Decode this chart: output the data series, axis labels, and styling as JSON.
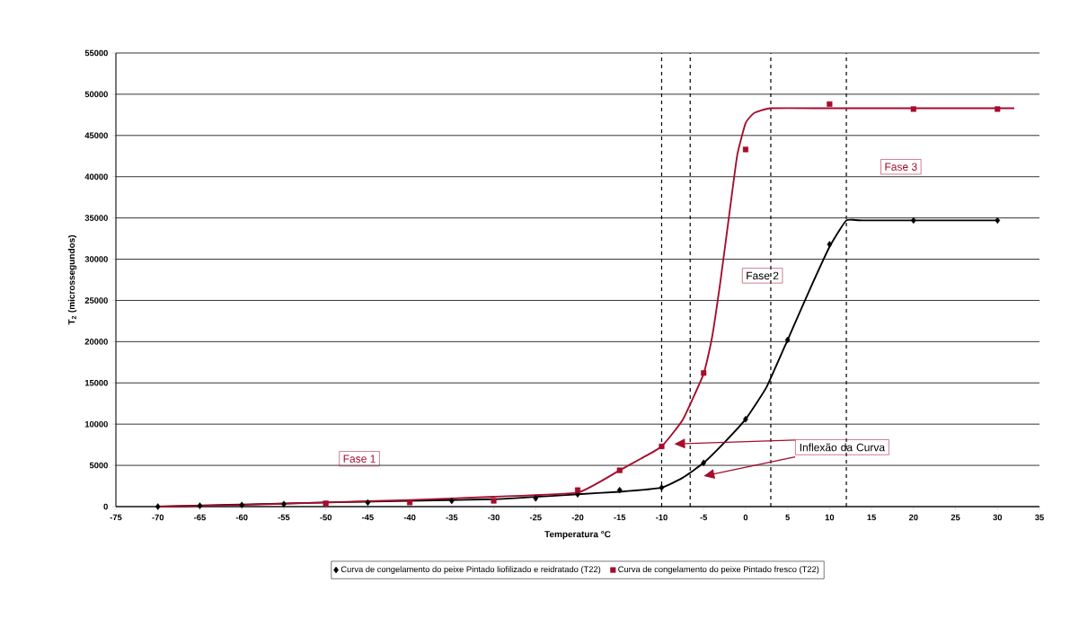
{
  "chart_data": {
    "type": "line",
    "xlabel": "Temperatura °C",
    "ylabel": "T$_{2}$ (microssegundos)",
    "xlim": [
      -75,
      35
    ],
    "xticks": [
      -75,
      -70,
      -65,
      -60,
      -55,
      -50,
      -45,
      -40,
      -35,
      -30,
      -25,
      -20,
      -15,
      -10,
      -5,
      0,
      5,
      10,
      15,
      20,
      25,
      30,
      35
    ],
    "ylim": [
      0,
      55000
    ],
    "yticks": [
      0,
      5000,
      10000,
      15000,
      20000,
      25000,
      30000,
      35000,
      40000,
      45000,
      50000,
      55000
    ],
    "grid": "y",
    "legend": "bottom",
    "series": [
      {
        "name": "Curva de congelamento do peixe Pintado liofilizado e reidratado (T22)",
        "type": "scatter",
        "marker": "diamond",
        "color": "#000000",
        "x": [
          -70,
          -65,
          -60,
          -55,
          -45,
          -35,
          -25,
          -20,
          -15,
          -10,
          -5,
          0,
          5,
          10,
          20,
          30
        ],
        "values": [
          0,
          100,
          200,
          300,
          500,
          700,
          1000,
          1500,
          2000,
          2300,
          5300,
          10600,
          20200,
          31800,
          34700,
          34700
        ]
      },
      {
        "name": "Curva de congelamento do peixe Pintado fresco (T22)",
        "type": "scatter",
        "marker": "square",
        "color": "#a50d2d",
        "x": [
          -50,
          -40,
          -30,
          -20,
          -15,
          -10,
          -5,
          0,
          10,
          20,
          30
        ],
        "values": [
          400,
          500,
          700,
          2000,
          4400,
          7300,
          16200,
          43300,
          48800,
          48200,
          48200
        ]
      },
      {
        "marker": "none",
        "color": "#000000",
        "x": [
          -70,
          -50,
          -30,
          -20,
          -15,
          -10,
          -7.5,
          -5,
          -2.5,
          0,
          2.5,
          5,
          7.5,
          10,
          12,
          14,
          30
        ],
        "values": [
          0,
          500,
          900,
          1500,
          1800,
          2300,
          3500,
          5300,
          7800,
          10600,
          14500,
          20200,
          26000,
          31500,
          34700,
          34700,
          34700
        ]
      },
      {
        "marker": "none",
        "color": "#a50d2d",
        "x": [
          -70,
          -60,
          -50,
          -40,
          -30,
          -20,
          -15,
          -12.5,
          -10,
          -7.5,
          -5,
          -4,
          -3,
          -2,
          -1,
          0,
          1,
          3,
          10,
          20,
          32
        ],
        "values": [
          0,
          200,
          500,
          800,
          1200,
          1700,
          4400,
          5800,
          7300,
          10500,
          16100,
          20500,
          27300,
          35000,
          42600,
          46500,
          47700,
          48300,
          48300,
          48300,
          48300
        ]
      }
    ],
    "ref_lines": [
      {
        "axis": "x",
        "value": -10,
        "line_style": "dashed",
        "color": "#000000"
      },
      {
        "axis": "x",
        "value": -6.6,
        "line_style": "dashed",
        "color": "#000000"
      },
      {
        "axis": "x",
        "value": 3,
        "line_style": "dashed",
        "color": "#000000"
      },
      {
        "axis": "x",
        "value": 12,
        "line_style": "dashed",
        "color": "#000000"
      }
    ],
    "annotations": [
      "Fase 1",
      "Fase 2",
      "Fase 3",
      "Inflexão da Curva"
    ]
  }
}
